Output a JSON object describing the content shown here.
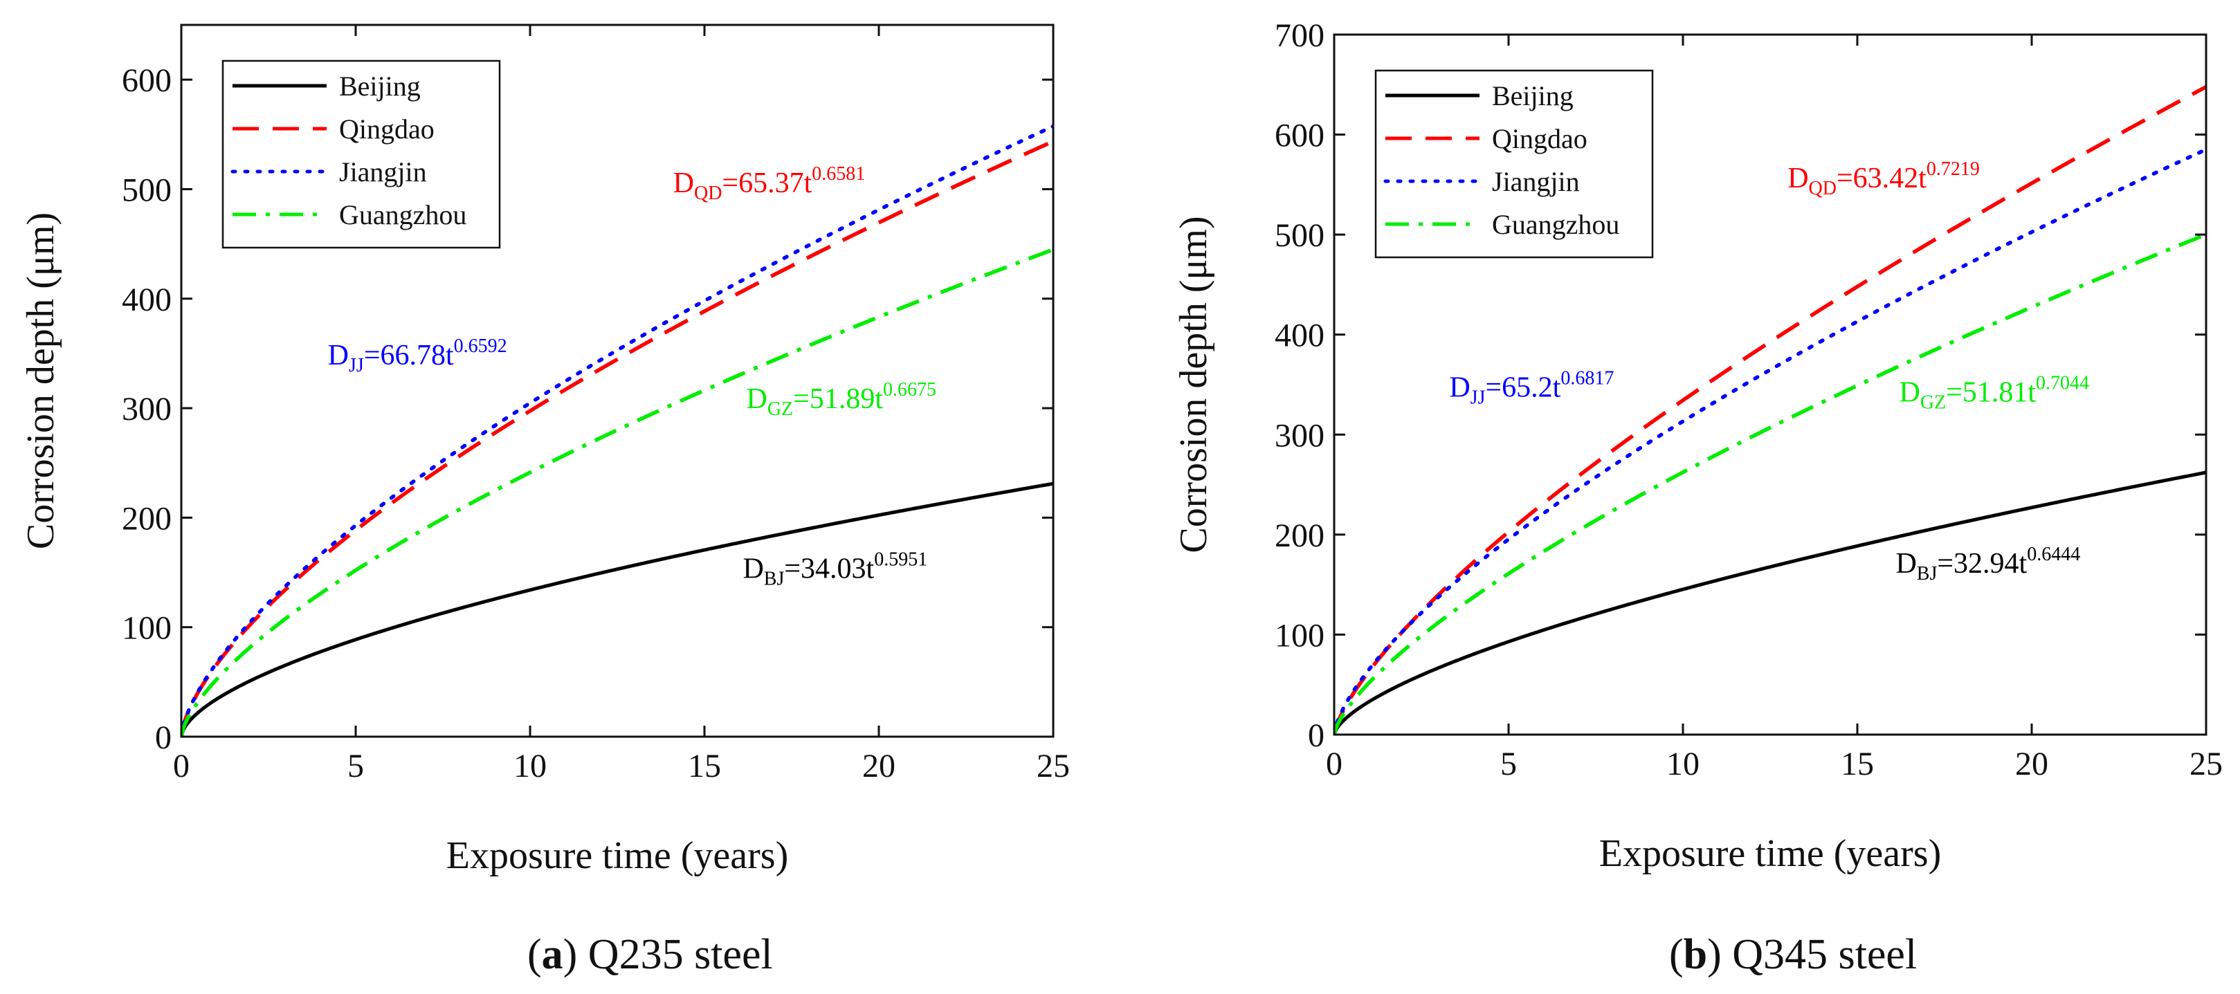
{
  "chart_data": [
    {
      "type": "line",
      "caption_letter": "a",
      "caption_text": "Q235 steel",
      "xlabel": "Exposure time (years)",
      "ylabel": "Corrosion depth (μm)",
      "xlim": [
        0,
        25
      ],
      "ylim": [
        0,
        650
      ],
      "xticks": [
        0,
        5,
        10,
        15,
        20,
        25
      ],
      "yticks": [
        0,
        100,
        200,
        300,
        400,
        500,
        600
      ],
      "grid": false,
      "legend_position": "top-left",
      "series": [
        {
          "name": "Beijing",
          "color": "#000000",
          "dash": "solid",
          "coef": 34.03,
          "exp": 0.5951,
          "eq_sub": "BJ",
          "eq_body": "=34.03t",
          "eq_exp": "0.5951",
          "eq_x": 16.1,
          "eq_y": 145
        },
        {
          "name": "Qingdao",
          "color": "#ff0000",
          "dash": "dashed",
          "coef": 65.37,
          "exp": 0.6581,
          "eq_sub": "QD",
          "eq_body": "=65.37t",
          "eq_exp": "0.6581",
          "eq_x": 14.1,
          "eq_y": 497
        },
        {
          "name": "Jiangjin",
          "color": "#0000ff",
          "dash": "dotted",
          "coef": 66.78,
          "exp": 0.6592,
          "eq_sub": "JJ",
          "eq_body": "=66.78t",
          "eq_exp": "0.6592",
          "eq_x": 4.2,
          "eq_y": 340
        },
        {
          "name": "Guangzhou",
          "color": "#00ee00",
          "dash": "dashdot",
          "coef": 51.89,
          "exp": 0.6675,
          "eq_sub": "GZ",
          "eq_body": "=51.89t",
          "eq_exp": "0.6675",
          "eq_x": 16.2,
          "eq_y": 300
        }
      ]
    },
    {
      "type": "line",
      "caption_letter": "b",
      "caption_text": "Q345 steel",
      "xlabel": "Exposure time (years)",
      "ylabel": "Corrosion depth (μm)",
      "xlim": [
        0,
        25
      ],
      "ylim": [
        0,
        700
      ],
      "xticks": [
        0,
        5,
        10,
        15,
        20,
        25
      ],
      "yticks": [
        0,
        100,
        200,
        300,
        400,
        500,
        600,
        700
      ],
      "grid": false,
      "legend_position": "top-left",
      "series": [
        {
          "name": "Beijing",
          "color": "#000000",
          "dash": "solid",
          "coef": 32.94,
          "exp": 0.6444,
          "eq_sub": "BJ",
          "eq_body": "=32.94t",
          "eq_exp": "0.6444",
          "eq_x": 16.1,
          "eq_y": 162
        },
        {
          "name": "Qingdao",
          "color": "#ff0000",
          "dash": "dashed",
          "coef": 63.42,
          "exp": 0.7219,
          "eq_sub": "QD",
          "eq_body": "=63.42t",
          "eq_exp": "0.7219",
          "eq_x": 13.0,
          "eq_y": 547
        },
        {
          "name": "Jiangjin",
          "color": "#0000ff",
          "dash": "dotted",
          "coef": 65.2,
          "exp": 0.6817,
          "eq_sub": "JJ",
          "eq_body": "=65.2t",
          "eq_exp": "0.6817",
          "eq_x": 3.3,
          "eq_y": 338
        },
        {
          "name": "Guangzhou",
          "color": "#00ee00",
          "dash": "dashdot",
          "coef": 51.81,
          "exp": 0.7044,
          "eq_sub": "GZ",
          "eq_body": "=51.81t",
          "eq_exp": "0.7044",
          "eq_x": 16.2,
          "eq_y": 333
        }
      ]
    }
  ]
}
